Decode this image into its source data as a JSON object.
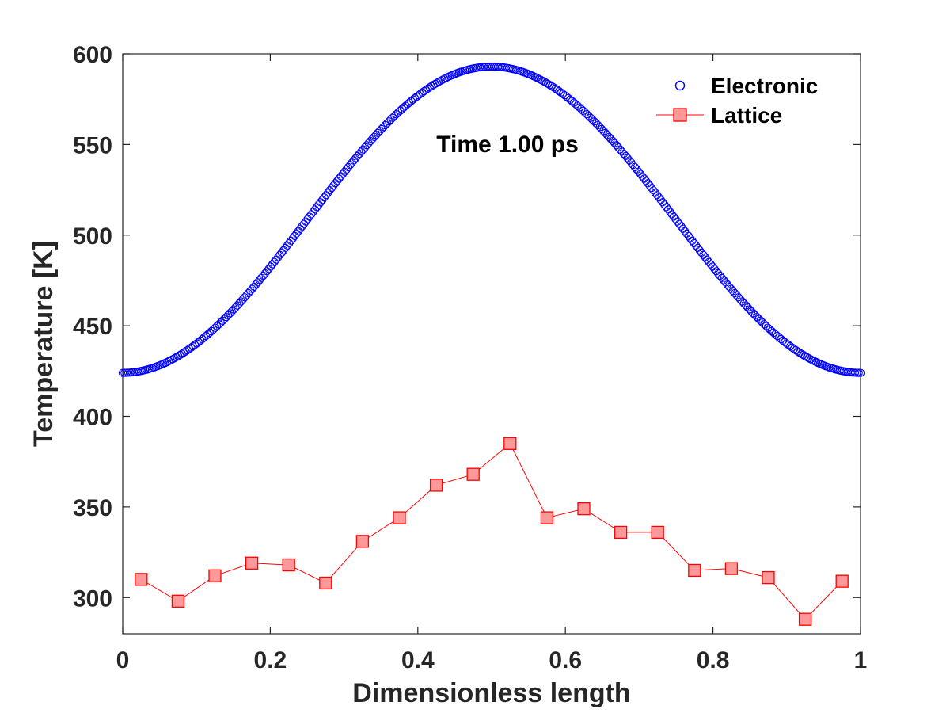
{
  "chart_data": {
    "type": "scatter",
    "xlabel": "Dimensionless length",
    "ylabel": "Temperature [K]",
    "xlim": [
      0,
      1
    ],
    "ylim": [
      280,
      600
    ],
    "xticks": [
      0,
      0.2,
      0.4,
      0.6,
      0.8,
      1
    ],
    "xtick_labels": [
      "0",
      "0.2",
      "0.4",
      "0.6",
      "0.8",
      "1"
    ],
    "yticks": [
      300,
      350,
      400,
      450,
      500,
      550,
      600
    ],
    "ytick_labels": [
      "300",
      "350",
      "400",
      "450",
      "500",
      "550",
      "600"
    ],
    "grid": false,
    "legend_position": "top-right",
    "annotation": "Time 1.00 ps",
    "series": [
      {
        "name": "Electronic",
        "style": "scatter",
        "marker": "open-circle",
        "color": "#0000ff",
        "function": "cosine",
        "min": 424,
        "max": 593,
        "x_range": [
          0,
          1
        ],
        "n_points": 400
      },
      {
        "name": "Lattice",
        "style": "line-markers",
        "marker": "square",
        "color": "#ff0000",
        "marker_fill": "#ff9999",
        "x": [
          0.025,
          0.075,
          0.125,
          0.175,
          0.225,
          0.275,
          0.325,
          0.375,
          0.425,
          0.475,
          0.525,
          0.575,
          0.625,
          0.675,
          0.725,
          0.775,
          0.825,
          0.875,
          0.925,
          0.975
        ],
        "y": [
          310,
          298,
          312,
          319,
          318,
          308,
          331,
          344,
          362,
          368,
          385,
          344,
          349,
          336,
          336,
          315,
          316,
          311,
          288,
          309
        ]
      }
    ]
  }
}
